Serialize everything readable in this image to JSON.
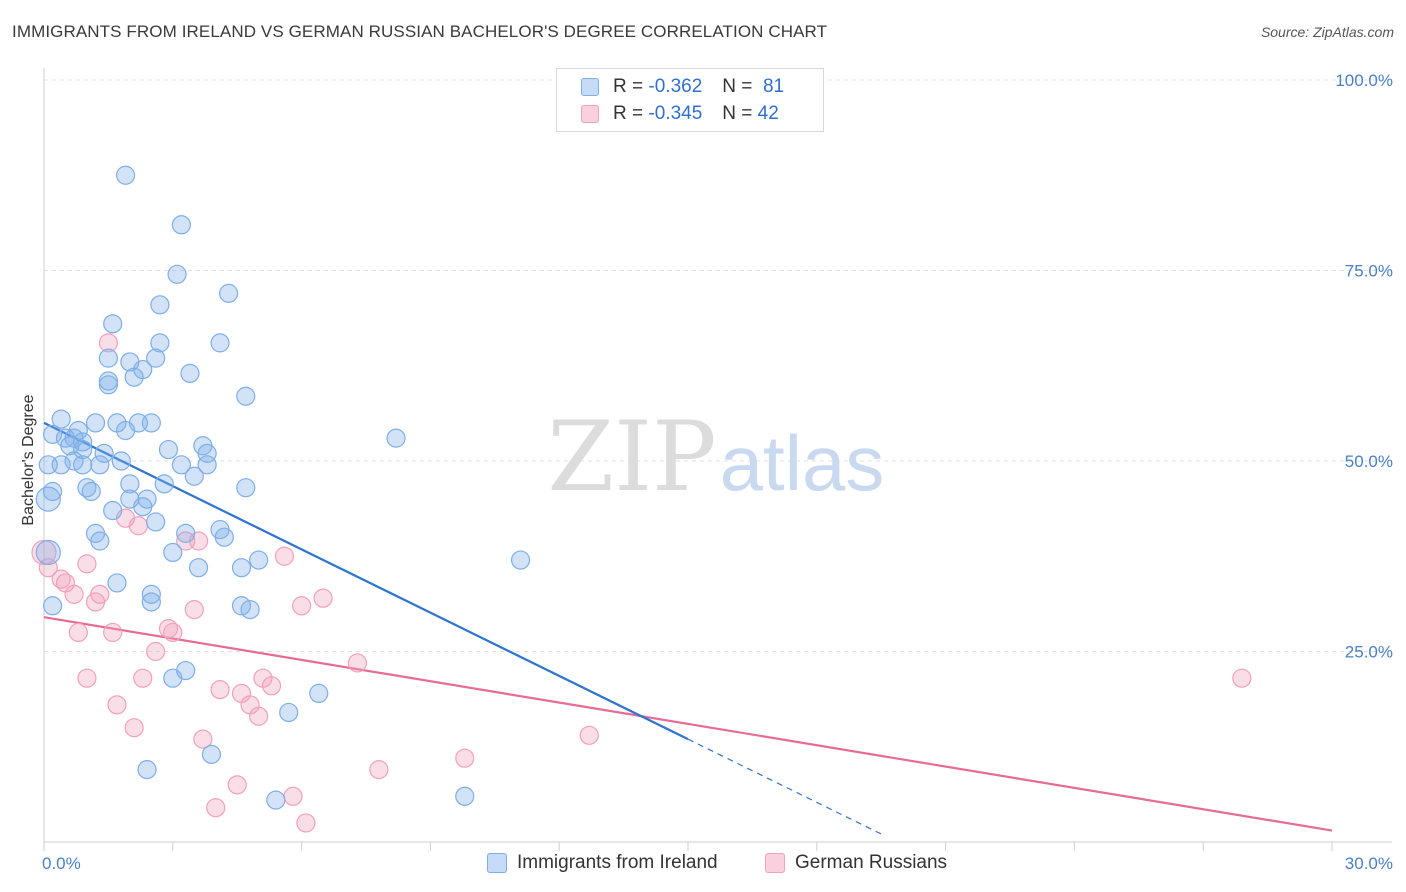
{
  "title": "IMMIGRANTS FROM IRELAND VS GERMAN RUSSIAN BACHELOR'S DEGREE CORRELATION CHART",
  "source": "Source: ZipAtlas.com",
  "watermark": {
    "zip": "ZIP",
    "atlas": "atlas"
  },
  "legend": {
    "rows": [
      {
        "r_label": "R =",
        "r_value": "-0.362",
        "n_label": "N =",
        "n_value": "81",
        "color": "#a9c8f0"
      },
      {
        "r_label": "R =",
        "r_value": "-0.345",
        "n_label": "N =",
        "n_value": "42",
        "color": "#f6b8cb"
      }
    ]
  },
  "bottom_legend": {
    "series1": "Immigrants from Ireland",
    "series2": "German Russians"
  },
  "chart_data": {
    "type": "scatter",
    "title": "IMMIGRANTS FROM IRELAND VS GERMAN RUSSIAN BACHELOR'S DEGREE CORRELATION CHART",
    "xlabel": "",
    "ylabel": "Bachelor's Degree",
    "xlim": [
      0,
      30
    ],
    "ylim": [
      0,
      100
    ],
    "x_tick_labels": [
      "0.0%",
      "30.0%"
    ],
    "y_tick_labels": [
      "100.0%",
      "75.0%",
      "50.0%",
      "25.0%"
    ],
    "y_ticks": [
      100,
      75,
      50,
      25
    ],
    "grid": true,
    "series": [
      {
        "name": "Immigrants from Ireland",
        "color": "#7eaee8",
        "line_color": "#2f74d0",
        "trend": {
          "x0": 0,
          "y0": 55.0,
          "x1": 15.0,
          "y1": 13.5,
          "dash_to_x": 19.5
        },
        "points": [
          [
            1.9,
            87.5
          ],
          [
            3.2,
            81.0
          ],
          [
            3.1,
            74.5
          ],
          [
            2.7,
            70.5
          ],
          [
            4.3,
            72.0
          ],
          [
            1.6,
            68.0
          ],
          [
            2.7,
            65.5
          ],
          [
            4.1,
            65.5
          ],
          [
            1.5,
            63.5
          ],
          [
            2.0,
            63.0
          ],
          [
            2.6,
            63.5
          ],
          [
            2.3,
            62.0
          ],
          [
            2.1,
            61.0
          ],
          [
            3.4,
            61.5
          ],
          [
            1.5,
            60.5
          ],
          [
            4.7,
            58.5
          ],
          [
            0.4,
            55.5
          ],
          [
            1.2,
            55.0
          ],
          [
            1.7,
            55.0
          ],
          [
            2.2,
            55.0
          ],
          [
            1.9,
            54.0
          ],
          [
            0.8,
            54.0
          ],
          [
            0.5,
            53.0
          ],
          [
            0.2,
            53.5
          ],
          [
            0.7,
            53.0
          ],
          [
            0.9,
            52.5
          ],
          [
            0.6,
            52.0
          ],
          [
            0.9,
            51.5
          ],
          [
            1.4,
            51.0
          ],
          [
            2.9,
            51.5
          ],
          [
            3.7,
            52.0
          ],
          [
            3.8,
            51.0
          ],
          [
            8.2,
            53.0
          ],
          [
            0.1,
            49.5
          ],
          [
            0.4,
            49.5
          ],
          [
            0.7,
            50.0
          ],
          [
            0.9,
            49.5
          ],
          [
            1.3,
            49.5
          ],
          [
            1.8,
            50.0
          ],
          [
            3.2,
            49.5
          ],
          [
            3.8,
            49.5
          ],
          [
            3.5,
            48.0
          ],
          [
            2.8,
            47.0
          ],
          [
            0.2,
            46.0
          ],
          [
            1.0,
            46.5
          ],
          [
            1.1,
            46.0
          ],
          [
            2.0,
            47.0
          ],
          [
            2.4,
            45.0
          ],
          [
            0.1,
            45.0
          ],
          [
            4.7,
            46.5
          ],
          [
            1.6,
            43.5
          ],
          [
            2.3,
            44.0
          ],
          [
            2.6,
            42.0
          ],
          [
            1.2,
            40.5
          ],
          [
            3.3,
            40.5
          ],
          [
            4.1,
            41.0
          ],
          [
            4.2,
            40.0
          ],
          [
            1.3,
            39.5
          ],
          [
            0.1,
            38.0
          ],
          [
            3.0,
            38.0
          ],
          [
            5.0,
            37.0
          ],
          [
            11.1,
            37.0
          ],
          [
            3.6,
            36.0
          ],
          [
            4.6,
            36.0
          ],
          [
            1.7,
            34.0
          ],
          [
            2.5,
            32.5
          ],
          [
            2.5,
            31.5
          ],
          [
            4.6,
            31.0
          ],
          [
            4.8,
            30.5
          ],
          [
            3.3,
            22.5
          ],
          [
            6.4,
            19.5
          ],
          [
            3.0,
            21.5
          ],
          [
            5.7,
            17.0
          ],
          [
            3.9,
            11.5
          ],
          [
            2.4,
            9.5
          ],
          [
            5.4,
            5.5
          ],
          [
            9.8,
            6.0
          ],
          [
            0.2,
            31.0
          ],
          [
            1.5,
            60.0
          ],
          [
            2.0,
            45.0
          ],
          [
            2.5,
            55.0
          ]
        ]
      },
      {
        "name": "German Russians",
        "color": "#f2a0bb",
        "line_color": "#e86a96",
        "trend": {
          "x0": 0,
          "y0": 29.5,
          "x1": 30,
          "y1": 1.5
        },
        "points": [
          [
            0.0,
            38.0
          ],
          [
            0.1,
            36.0
          ],
          [
            0.5,
            34.0
          ],
          [
            0.4,
            34.5
          ],
          [
            0.7,
            32.5
          ],
          [
            1.0,
            36.5
          ],
          [
            1.3,
            32.5
          ],
          [
            1.2,
            31.5
          ],
          [
            1.5,
            65.5
          ],
          [
            1.9,
            42.5
          ],
          [
            2.2,
            41.5
          ],
          [
            3.3,
            39.5
          ],
          [
            3.6,
            39.5
          ],
          [
            5.6,
            37.5
          ],
          [
            0.8,
            27.5
          ],
          [
            1.6,
            27.5
          ],
          [
            2.9,
            28.0
          ],
          [
            3.0,
            27.5
          ],
          [
            3.5,
            30.5
          ],
          [
            6.0,
            31.0
          ],
          [
            6.5,
            32.0
          ],
          [
            2.6,
            25.0
          ],
          [
            7.3,
            23.5
          ],
          [
            1.0,
            21.5
          ],
          [
            2.3,
            21.5
          ],
          [
            5.1,
            21.5
          ],
          [
            5.3,
            20.5
          ],
          [
            4.1,
            20.0
          ],
          [
            4.6,
            19.5
          ],
          [
            1.7,
            18.0
          ],
          [
            4.8,
            18.0
          ],
          [
            5.0,
            16.5
          ],
          [
            2.1,
            15.0
          ],
          [
            3.7,
            13.5
          ],
          [
            12.7,
            14.0
          ],
          [
            9.8,
            11.0
          ],
          [
            7.8,
            9.5
          ],
          [
            4.5,
            7.5
          ],
          [
            5.8,
            6.0
          ],
          [
            4.0,
            4.5
          ],
          [
            6.1,
            2.5
          ],
          [
            27.9,
            21.5
          ]
        ]
      }
    ]
  }
}
